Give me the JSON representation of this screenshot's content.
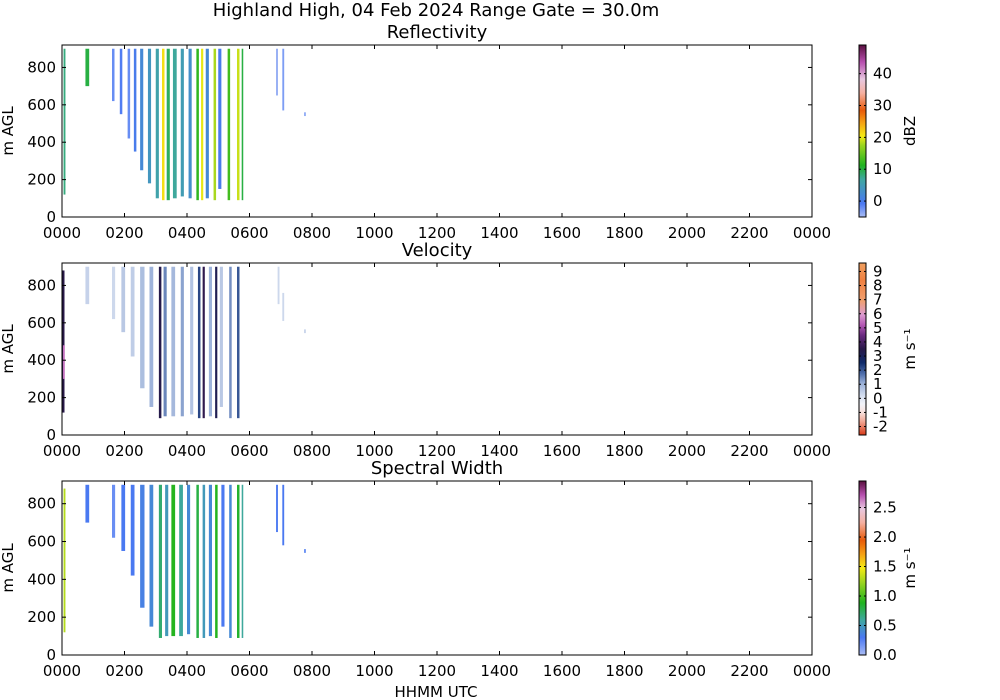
{
  "figure": {
    "title": "Highland High, 04 Feb 2024 Range Gate = 30.0m",
    "xlabel": "HHMM UTC"
  },
  "chart_data": [
    {
      "type": "heatmap",
      "title": "Reflectivity",
      "ylabel": "m AGL",
      "xlabel": "HHMM UTC",
      "x_ticks": [
        "0000",
        "0200",
        "0400",
        "0600",
        "0800",
        "1000",
        "1200",
        "1400",
        "1600",
        "1800",
        "2000",
        "2200",
        "0000"
      ],
      "y_ticks": [
        "0",
        "200",
        "400",
        "600",
        "800"
      ],
      "xlim": [
        0,
        24
      ],
      "ylim": [
        0,
        920
      ],
      "colorbar": {
        "label": "dBZ",
        "ticks": [
          "0",
          "10",
          "20",
          "30",
          "40"
        ],
        "range": [
          -5,
          49
        ]
      },
      "strips": [
        {
          "x": 0.05,
          "w": 0.06,
          "y0": 120,
          "y1": 900,
          "value": 8
        },
        {
          "x": 0.75,
          "w": 0.12,
          "y0": 700,
          "y1": 900,
          "value": 10
        },
        {
          "x": 1.6,
          "w": 0.08,
          "y0": 620,
          "y1": 900,
          "value": -2
        },
        {
          "x": 1.85,
          "w": 0.08,
          "y0": 550,
          "y1": 900,
          "value": -1
        },
        {
          "x": 2.1,
          "w": 0.08,
          "y0": 420,
          "y1": 900,
          "value": -2
        },
        {
          "x": 2.3,
          "w": 0.08,
          "y0": 350,
          "y1": 900,
          "value": 0
        },
        {
          "x": 2.5,
          "w": 0.1,
          "y0": 250,
          "y1": 900,
          "value": 2
        },
        {
          "x": 2.75,
          "w": 0.1,
          "y0": 180,
          "y1": 900,
          "value": 4
        },
        {
          "x": 3.0,
          "w": 0.1,
          "y0": 100,
          "y1": 900,
          "value": 6
        },
        {
          "x": 3.2,
          "w": 0.08,
          "y0": 90,
          "y1": 900,
          "value": 21
        },
        {
          "x": 3.35,
          "w": 0.1,
          "y0": 90,
          "y1": 900,
          "value": 9
        },
        {
          "x": 3.55,
          "w": 0.12,
          "y0": 100,
          "y1": 900,
          "value": 7
        },
        {
          "x": 3.8,
          "w": 0.1,
          "y0": 110,
          "y1": 900,
          "value": 5
        },
        {
          "x": 4.05,
          "w": 0.1,
          "y0": 100,
          "y1": 900,
          "value": 3
        },
        {
          "x": 4.3,
          "w": 0.08,
          "y0": 90,
          "y1": 900,
          "value": 12
        },
        {
          "x": 4.45,
          "w": 0.07,
          "y0": 90,
          "y1": 900,
          "value": 20
        },
        {
          "x": 4.6,
          "w": 0.1,
          "y0": 100,
          "y1": 900,
          "value": 2
        },
        {
          "x": 4.85,
          "w": 0.08,
          "y0": 90,
          "y1": 900,
          "value": 18
        },
        {
          "x": 5.0,
          "w": 0.1,
          "y0": 150,
          "y1": 900,
          "value": 0
        },
        {
          "x": 5.3,
          "w": 0.08,
          "y0": 90,
          "y1": 900,
          "value": 13
        },
        {
          "x": 5.6,
          "w": 0.08,
          "y0": 90,
          "y1": 900,
          "value": 19
        },
        {
          "x": 5.75,
          "w": 0.05,
          "y0": 90,
          "y1": 900,
          "value": 10
        },
        {
          "x": 6.85,
          "w": 0.06,
          "y0": 650,
          "y1": 900,
          "value": -4
        },
        {
          "x": 7.05,
          "w": 0.06,
          "y0": 570,
          "y1": 900,
          "value": -3
        },
        {
          "x": 7.75,
          "w": 0.05,
          "y0": 540,
          "y1": 560,
          "value": -3
        }
      ]
    },
    {
      "type": "heatmap",
      "title": "Velocity",
      "ylabel": "m AGL",
      "xlabel": "HHMM UTC",
      "x_ticks": [
        "0000",
        "0200",
        "0400",
        "0600",
        "0800",
        "1000",
        "1200",
        "1400",
        "1600",
        "1800",
        "2000",
        "2200",
        "0000"
      ],
      "y_ticks": [
        "0",
        "200",
        "400",
        "600",
        "800"
      ],
      "xlim": [
        0,
        24
      ],
      "ylim": [
        0,
        920
      ],
      "colorbar": {
        "label": "m s⁻¹",
        "ticks": [
          "-2",
          "-1",
          "0",
          "1",
          "2",
          "3",
          "4",
          "5",
          "6",
          "7",
          "8",
          "9"
        ],
        "range": [
          -2.6,
          9.6
        ]
      },
      "strips": [
        {
          "x": 0.0,
          "w": 0.08,
          "y0": 120,
          "y1": 880,
          "value": 3.5
        },
        {
          "x": 0.03,
          "w": 0.06,
          "y0": 300,
          "y1": 480,
          "value": 5.5
        },
        {
          "x": 0.75,
          "w": 0.12,
          "y0": 700,
          "y1": 900,
          "value": 0.4
        },
        {
          "x": 1.6,
          "w": 0.1,
          "y0": 620,
          "y1": 900,
          "value": 0.3
        },
        {
          "x": 1.9,
          "w": 0.12,
          "y0": 550,
          "y1": 900,
          "value": 0.6
        },
        {
          "x": 2.2,
          "w": 0.12,
          "y0": 420,
          "y1": 900,
          "value": 0.5
        },
        {
          "x": 2.5,
          "w": 0.14,
          "y0": 250,
          "y1": 900,
          "value": 0.8
        },
        {
          "x": 2.8,
          "w": 0.12,
          "y0": 150,
          "y1": 900,
          "value": 1.0
        },
        {
          "x": 3.1,
          "w": 0.08,
          "y0": 90,
          "y1": 900,
          "value": 3.4
        },
        {
          "x": 3.25,
          "w": 0.1,
          "y0": 100,
          "y1": 900,
          "value": 1.5
        },
        {
          "x": 3.5,
          "w": 0.12,
          "y0": 100,
          "y1": 900,
          "value": 0.9
        },
        {
          "x": 3.8,
          "w": 0.1,
          "y0": 100,
          "y1": 900,
          "value": 1.2
        },
        {
          "x": 4.1,
          "w": 0.1,
          "y0": 110,
          "y1": 900,
          "value": 0.7
        },
        {
          "x": 4.35,
          "w": 0.08,
          "y0": 90,
          "y1": 900,
          "value": 2.2
        },
        {
          "x": 4.5,
          "w": 0.07,
          "y0": 90,
          "y1": 900,
          "value": 3.6
        },
        {
          "x": 4.7,
          "w": 0.1,
          "y0": 100,
          "y1": 900,
          "value": 1.0
        },
        {
          "x": 4.9,
          "w": 0.07,
          "y0": 90,
          "y1": 900,
          "value": 3.2
        },
        {
          "x": 5.05,
          "w": 0.1,
          "y0": 150,
          "y1": 900,
          "value": 0.6
        },
        {
          "x": 5.35,
          "w": 0.08,
          "y0": 90,
          "y1": 900,
          "value": 1.4
        },
        {
          "x": 5.6,
          "w": 0.08,
          "y0": 90,
          "y1": 900,
          "value": 2.0
        },
        {
          "x": 6.9,
          "w": 0.06,
          "y0": 700,
          "y1": 900,
          "value": 0.3
        },
        {
          "x": 7.05,
          "w": 0.06,
          "y0": 610,
          "y1": 760,
          "value": 0.3
        },
        {
          "x": 7.75,
          "w": 0.05,
          "y0": 545,
          "y1": 565,
          "value": 0.5
        }
      ]
    },
    {
      "type": "heatmap",
      "title": "Spectral Width",
      "ylabel": "m AGL",
      "xlabel": "HHMM UTC",
      "x_ticks": [
        "0000",
        "0200",
        "0400",
        "0600",
        "0800",
        "1000",
        "1200",
        "1400",
        "1600",
        "1800",
        "2000",
        "2200",
        "0000"
      ],
      "y_ticks": [
        "0",
        "200",
        "400",
        "600",
        "800"
      ],
      "xlim": [
        0,
        24
      ],
      "ylim": [
        0,
        920
      ],
      "colorbar": {
        "label": "m s⁻¹",
        "ticks": [
          "0.0",
          "0.5",
          "1.0",
          "1.5",
          "2.0",
          "2.5"
        ],
        "range": [
          0,
          2.95
        ]
      },
      "strips": [
        {
          "x": 0.05,
          "w": 0.06,
          "y0": 120,
          "y1": 880,
          "value": 1.3
        },
        {
          "x": 0.75,
          "w": 0.12,
          "y0": 700,
          "y1": 900,
          "value": 0.3
        },
        {
          "x": 1.6,
          "w": 0.1,
          "y0": 620,
          "y1": 900,
          "value": 0.2
        },
        {
          "x": 1.9,
          "w": 0.12,
          "y0": 550,
          "y1": 900,
          "value": 0.3
        },
        {
          "x": 2.2,
          "w": 0.12,
          "y0": 420,
          "y1": 900,
          "value": 0.3
        },
        {
          "x": 2.5,
          "w": 0.14,
          "y0": 250,
          "y1": 900,
          "value": 0.35
        },
        {
          "x": 2.8,
          "w": 0.12,
          "y0": 150,
          "y1": 900,
          "value": 0.4
        },
        {
          "x": 3.1,
          "w": 0.1,
          "y0": 90,
          "y1": 900,
          "value": 0.7
        },
        {
          "x": 3.3,
          "w": 0.1,
          "y0": 100,
          "y1": 900,
          "value": 0.5
        },
        {
          "x": 3.5,
          "w": 0.12,
          "y0": 100,
          "y1": 900,
          "value": 0.9
        },
        {
          "x": 3.75,
          "w": 0.12,
          "y0": 100,
          "y1": 900,
          "value": 0.6
        },
        {
          "x": 4.0,
          "w": 0.1,
          "y0": 110,
          "y1": 900,
          "value": 0.4
        },
        {
          "x": 4.3,
          "w": 0.08,
          "y0": 90,
          "y1": 900,
          "value": 0.8
        },
        {
          "x": 4.5,
          "w": 0.08,
          "y0": 90,
          "y1": 900,
          "value": 0.5
        },
        {
          "x": 4.7,
          "w": 0.1,
          "y0": 100,
          "y1": 900,
          "value": 0.4
        },
        {
          "x": 4.9,
          "w": 0.08,
          "y0": 90,
          "y1": 900,
          "value": 0.9
        },
        {
          "x": 5.1,
          "w": 0.1,
          "y0": 150,
          "y1": 900,
          "value": 0.3
        },
        {
          "x": 5.35,
          "w": 0.08,
          "y0": 90,
          "y1": 900,
          "value": 0.4
        },
        {
          "x": 5.6,
          "w": 0.08,
          "y0": 90,
          "y1": 900,
          "value": 0.85
        },
        {
          "x": 5.75,
          "w": 0.05,
          "y0": 90,
          "y1": 900,
          "value": 0.6
        },
        {
          "x": 6.85,
          "w": 0.06,
          "y0": 650,
          "y1": 900,
          "value": 0.3
        },
        {
          "x": 7.05,
          "w": 0.06,
          "y0": 580,
          "y1": 900,
          "value": 0.3
        },
        {
          "x": 7.75,
          "w": 0.05,
          "y0": 540,
          "y1": 560,
          "value": 0.3
        }
      ]
    }
  ]
}
